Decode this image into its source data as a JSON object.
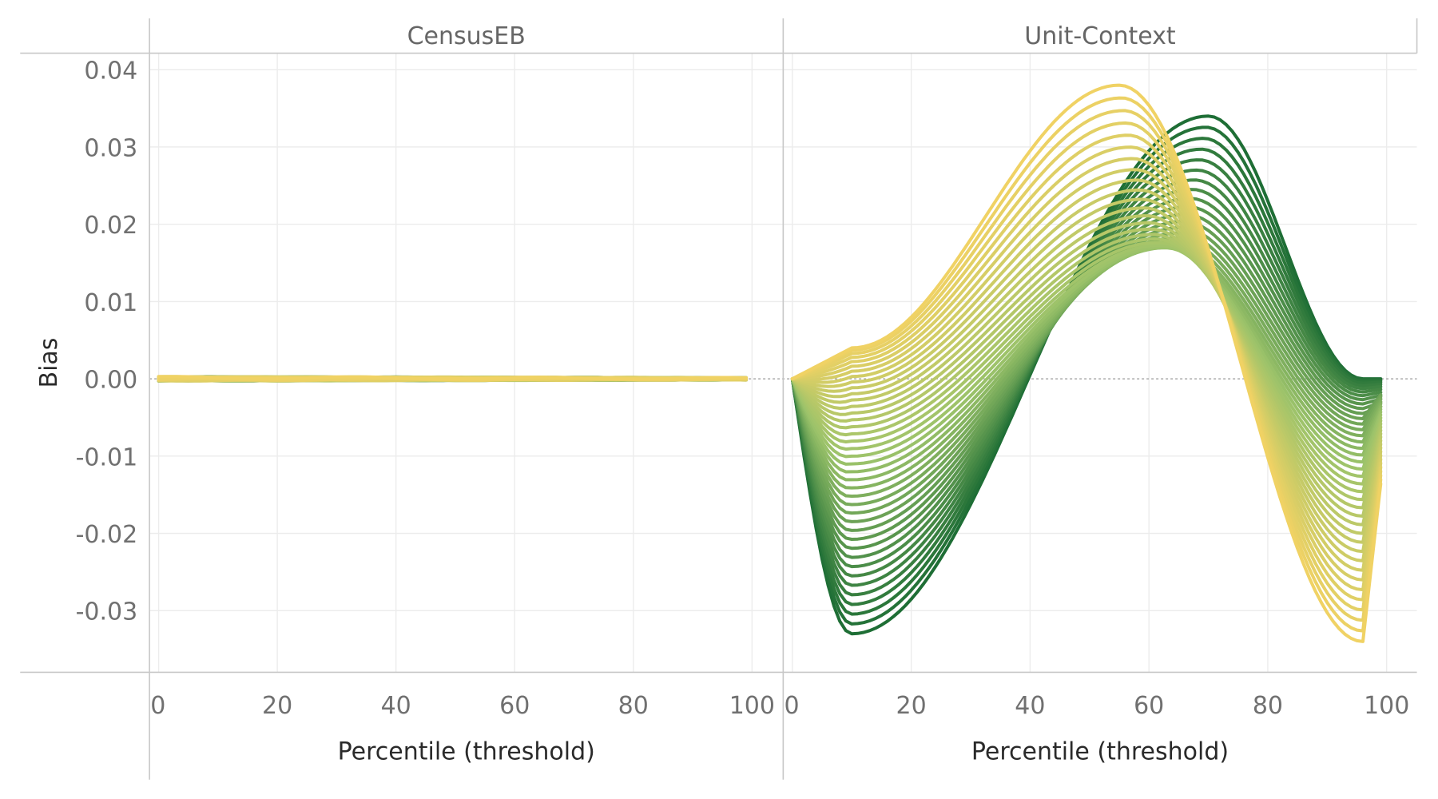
{
  "chart_data": {
    "type": "line",
    "ylabel": "Bias",
    "ylim": [
      -0.04,
      0.042
    ],
    "y_ticks": [
      "0.04",
      "0.03",
      "0.02",
      "0.01",
      "0.00",
      "-0.01",
      "-0.02",
      "-0.03"
    ],
    "y_tick_values": [
      0.04,
      0.03,
      0.02,
      0.01,
      0.0,
      -0.01,
      -0.02,
      -0.03
    ],
    "grid": true,
    "legend": "none",
    "colors": {
      "low": "#1e6e35",
      "mid": "#9cc36a",
      "high": "#f0d264",
      "grid": "#ececec",
      "frame": "#c8c8c8",
      "zero_line": "#9a9a9a"
    },
    "panels": [
      {
        "title": "CensusEB",
        "xlabel": "Percentile (threshold)",
        "xlim": [
          0,
          100
        ],
        "x_ticks": [
          "0",
          "20",
          "40",
          "60",
          "80",
          "100"
        ],
        "x_tick_values": [
          0,
          20,
          40,
          60,
          80,
          100
        ],
        "series_family": {
          "count": 40,
          "description_note": "",
          "bias_at_x": {
            "0": 0.0,
            "20": 0.0,
            "40": 0.0,
            "60": 0.0,
            "80": 0.0,
            "100": 0.0
          },
          "spread": 0.0004
        }
      },
      {
        "title": "Unit-Context",
        "xlabel": "Percentile (threshold)",
        "xlim": [
          0,
          100
        ],
        "x_ticks": [
          "0",
          "20",
          "40",
          "60",
          "80",
          "100"
        ],
        "x_tick_values": [
          0,
          20,
          40,
          60,
          80,
          100
        ],
        "series_family": {
          "count": 40,
          "green_extreme": {
            "min_x": 10,
            "min_y": -0.033,
            "max_x": 70,
            "max_y": 0.034,
            "end_y": 0.0
          },
          "yellow_extreme": {
            "min_x": 0,
            "min_y": 0.0,
            "max_x": 55,
            "max_y": 0.038,
            "trough_x": 97,
            "trough_y": -0.034
          },
          "mid_example": {
            "min_x": 10,
            "min_y": -0.012,
            "max_x": 62,
            "max_y": 0.024,
            "end_y": -0.01
          }
        }
      }
    ]
  }
}
